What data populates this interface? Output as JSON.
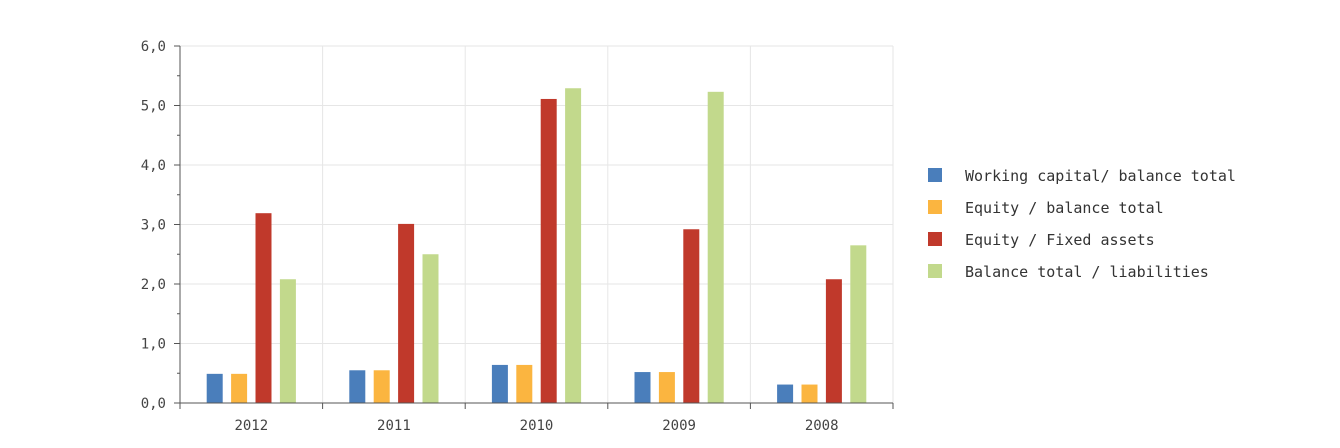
{
  "chart_data": {
    "type": "bar",
    "categories": [
      "2012",
      "2011",
      "2010",
      "2009",
      "2008"
    ],
    "series": [
      {
        "name": "Working capital/ balance total",
        "color": "#4a7ebb",
        "values": [
          0.49,
          0.55,
          0.64,
          0.52,
          0.31
        ]
      },
      {
        "name": "Equity / balance total",
        "color": "#fbb540",
        "values": [
          0.49,
          0.55,
          0.64,
          0.52,
          0.31
        ]
      },
      {
        "name": "Equity / Fixed assets",
        "color": "#c0392b",
        "values": [
          3.19,
          3.01,
          5.11,
          2.92,
          2.08
        ]
      },
      {
        "name": "Balance total / liabilities",
        "color": "#c2d98c",
        "values": [
          2.08,
          2.5,
          5.29,
          5.23,
          2.65
        ]
      }
    ],
    "yticks": [
      "0,0",
      "1,0",
      "2,0",
      "3,0",
      "4,0",
      "5,0",
      "6,0"
    ],
    "ylim": [
      0,
      6
    ],
    "grid": true,
    "legend_position": "right",
    "title": "",
    "xlabel": "",
    "ylabel": ""
  }
}
